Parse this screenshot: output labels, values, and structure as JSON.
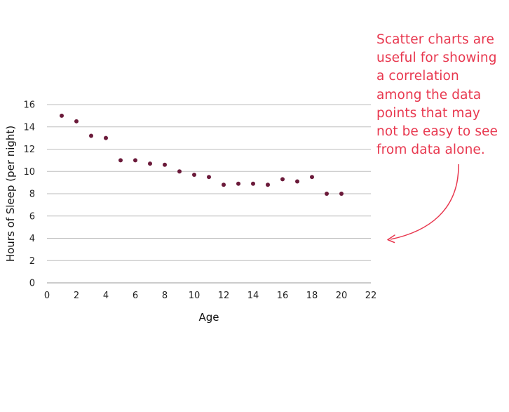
{
  "chart_data": {
    "type": "scatter",
    "xlabel": "Age",
    "ylabel": "Hours of Sleep (per night)",
    "xlim": [
      0,
      22
    ],
    "ylim": [
      0,
      16
    ],
    "x_ticks": [
      0,
      2,
      4,
      6,
      8,
      10,
      12,
      14,
      16,
      18,
      20,
      22
    ],
    "y_ticks": [
      0,
      2,
      4,
      6,
      8,
      10,
      12,
      14,
      16
    ],
    "grid": "horizontal",
    "point_color": "#6b1a3a",
    "points": [
      {
        "x": 1,
        "y": 15
      },
      {
        "x": 2,
        "y": 14.5
      },
      {
        "x": 3,
        "y": 13.2
      },
      {
        "x": 4,
        "y": 13
      },
      {
        "x": 5,
        "y": 11
      },
      {
        "x": 6,
        "y": 11
      },
      {
        "x": 7,
        "y": 10.7
      },
      {
        "x": 8,
        "y": 10.6
      },
      {
        "x": 9,
        "y": 10
      },
      {
        "x": 10,
        "y": 9.7
      },
      {
        "x": 11,
        "y": 9.5
      },
      {
        "x": 12,
        "y": 8.8
      },
      {
        "x": 13,
        "y": 8.9
      },
      {
        "x": 14,
        "y": 8.9
      },
      {
        "x": 15,
        "y": 8.8
      },
      {
        "x": 16,
        "y": 9.3
      },
      {
        "x": 17,
        "y": 9.1
      },
      {
        "x": 18,
        "y": 9.5
      },
      {
        "x": 19,
        "y": 8
      },
      {
        "x": 20,
        "y": 8
      }
    ]
  },
  "annotation": {
    "lines": [
      "Scatter charts are",
      "useful for showing",
      "a correlation",
      "among the data",
      "points that may",
      "not be easy to see",
      "from data alone."
    ],
    "color": "#e8384f"
  }
}
